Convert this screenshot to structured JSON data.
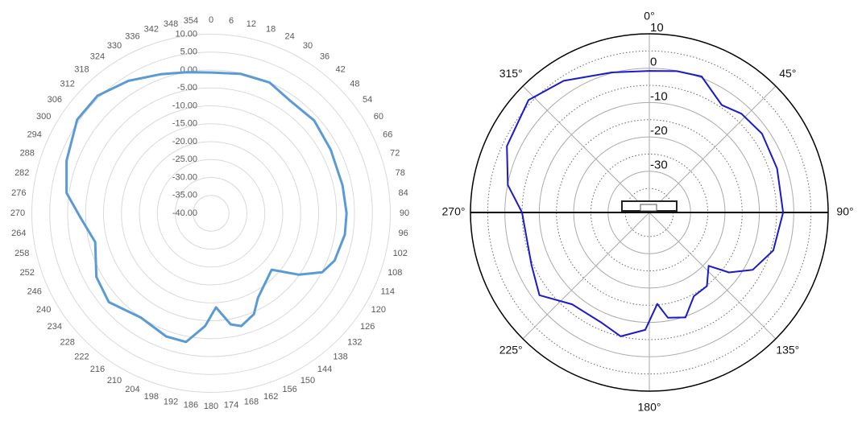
{
  "chart_data": [
    {
      "type": "polar",
      "theta_direction": "clockwise",
      "color": "#5b9bd5",
      "rlim": [
        -40,
        10
      ],
      "rticks": [
        {
          "value": 10,
          "label": "10.00"
        },
        {
          "value": 5,
          "label": "5.00"
        },
        {
          "value": 0,
          "label": "0.00"
        },
        {
          "value": -5,
          "label": "-5.00"
        },
        {
          "value": -10,
          "label": "-10.00"
        },
        {
          "value": -15,
          "label": "-15.00"
        },
        {
          "value": -20,
          "label": "-20.00"
        },
        {
          "value": -25,
          "label": "-25.00"
        },
        {
          "value": -30,
          "label": "-30.00"
        },
        {
          "value": -35,
          "label": "-35.00"
        },
        {
          "value": -40,
          "label": "-40.00"
        }
      ],
      "theta_ticks": [
        0,
        6,
        12,
        18,
        24,
        30,
        36,
        42,
        48,
        54,
        60,
        66,
        72,
        78,
        84,
        90,
        96,
        102,
        108,
        114,
        120,
        126,
        132,
        138,
        144,
        150,
        156,
        162,
        168,
        174,
        180,
        186,
        192,
        198,
        204,
        210,
        216,
        222,
        228,
        234,
        240,
        246,
        252,
        258,
        264,
        270,
        276,
        282,
        288,
        294,
        300,
        306,
        312,
        318,
        324,
        330,
        336,
        342,
        348,
        354
      ],
      "theta": [
        0,
        12,
        24,
        35,
        48,
        62,
        78,
        90,
        99,
        111,
        118,
        125,
        133,
        151,
        157,
        165,
        170,
        177,
        183,
        191,
        200,
        214,
        229,
        241,
        256,
        268,
        278,
        290,
        305,
        316,
        328,
        340,
        350
      ],
      "values": [
        -0.7,
        -0.2,
        0.0,
        -1.6,
        -1.3,
        -2.2,
        -2.5,
        -2.2,
        -2.2,
        -3.1,
        -4.9,
        -10.1,
        -16.9,
        -13.0,
        -9.4,
        -7.4,
        -8.5,
        -13.7,
        -8.5,
        -3.4,
        -3.4,
        -4.9,
        -2.2,
        -3.4,
        -6.7,
        -3.6,
        0.7,
        2.9,
        5.6,
        5.6,
        3.6,
        1.3,
        0.0
      ]
    },
    {
      "type": "polar",
      "theta_direction": "clockwise",
      "color": "#1a1acc",
      "rlim": [
        -42,
        10
      ],
      "rticks": [
        10,
        0,
        -10,
        -20,
        -30
      ],
      "rgrid_minor": [
        5,
        -5,
        -15,
        -25,
        -35
      ],
      "theta_ticks": [
        {
          "value": 0,
          "label": "0°"
        },
        {
          "value": 45,
          "label": "45°"
        },
        {
          "value": 90,
          "label": "90°"
        },
        {
          "value": 135,
          "label": "135°"
        },
        {
          "value": 180,
          "label": "180°"
        },
        {
          "value": 225,
          "label": "225°"
        },
        {
          "value": 270,
          "label": "270°"
        },
        {
          "value": 315,
          "label": "315°"
        }
      ],
      "theta": [
        0,
        11,
        21,
        34,
        43,
        55,
        71,
        90,
        107,
        119,
        127,
        132,
        142,
        152,
        161,
        170,
        175,
        182,
        193,
        204,
        220,
        233,
        246,
        270,
        281,
        295,
        313,
        327,
        345
      ],
      "values": [
        -0.8,
        -0.1,
        0.4,
        -4.3,
        -2.7,
        -2.0,
        -2.7,
        -3.1,
        -4.3,
        -7.6,
        -13.0,
        -18.8,
        -14.8,
        -14.4,
        -9.7,
        -10.9,
        -15.3,
        -7.8,
        -5.0,
        -7.1,
        -7.1,
        -2.0,
        -4.5,
        -5.0,
        -0.1,
        3.7,
        6.0,
        3.7,
        0.2
      ]
    }
  ]
}
